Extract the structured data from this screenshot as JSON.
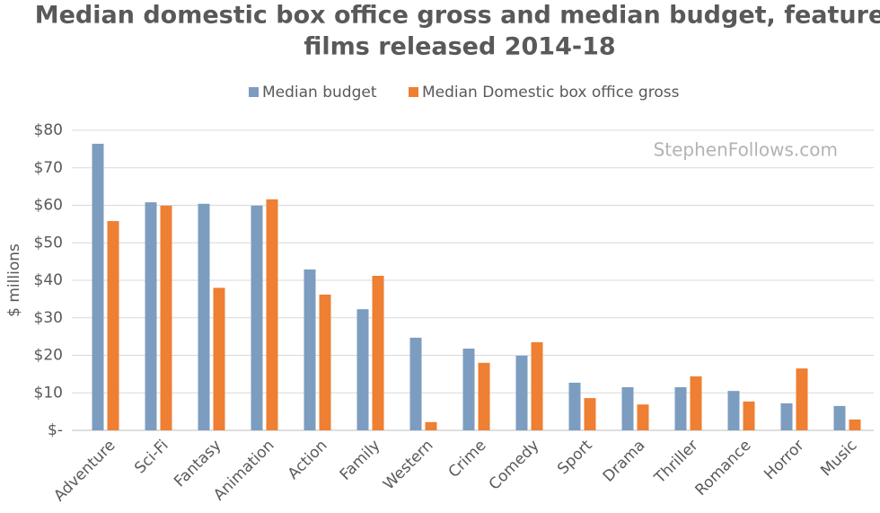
{
  "chart_data": {
    "type": "bar",
    "title": [
      "Median domestic box office gross and median budget, feature",
      "films released 2014-18"
    ],
    "y_label": "$ millions",
    "watermark": "StephenFollows.com",
    "categories": [
      "Adventure",
      "Sci-Fi",
      "Fantasy",
      "Animation",
      "Action",
      "Family",
      "Western",
      "Crime",
      "Comedy",
      "Sport",
      "Drama",
      "Thriller",
      "Romance",
      "Horror",
      "Music"
    ],
    "series": [
      {
        "name": "Median budget",
        "color": "#7c9dc0",
        "values": [
          76.4,
          60.8,
          60.4,
          59.9,
          42.9,
          32.3,
          24.7,
          21.8,
          19.9,
          12.7,
          11.5,
          11.5,
          10.5,
          7.2,
          6.5
        ]
      },
      {
        "name": "Median Domestic box office gross",
        "color": "#ee7f33",
        "values": [
          55.8,
          59.9,
          38,
          61.6,
          36.2,
          41.2,
          2.2,
          18,
          23.5,
          8.6,
          6.9,
          14.4,
          7.7,
          16.5,
          2.9
        ]
      }
    ],
    "ylim": [
      0,
      80
    ],
    "yticks": [
      {
        "value": 0,
        "label": "$-"
      },
      {
        "value": 10,
        "label": "$10"
      },
      {
        "value": 20,
        "label": "$20"
      },
      {
        "value": 30,
        "label": "$30"
      },
      {
        "value": 40,
        "label": "$40"
      },
      {
        "value": 50,
        "label": "$50"
      },
      {
        "value": 60,
        "label": "$60"
      },
      {
        "value": 70,
        "label": "$70"
      },
      {
        "value": 80,
        "label": "$80"
      }
    ],
    "grid": true
  }
}
